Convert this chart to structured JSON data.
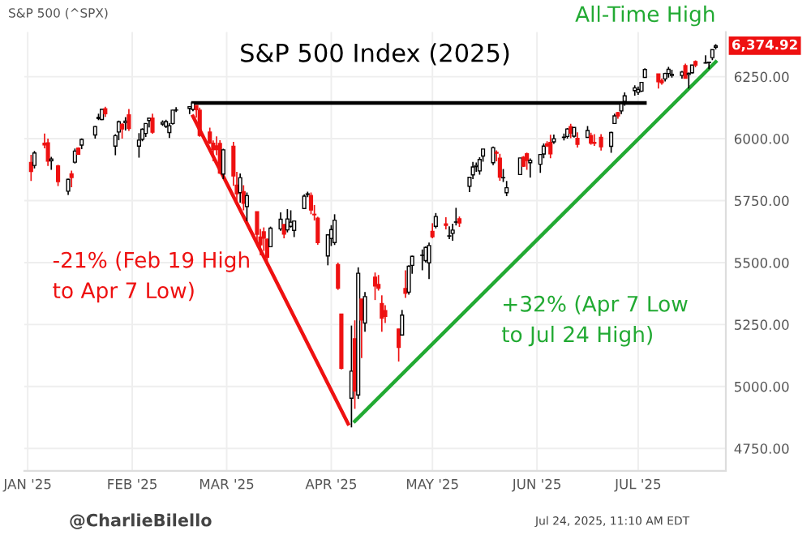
{
  "chart_data": {
    "type": "candlestick",
    "title": "S&P 500 Index (2025)",
    "subtitle": "S&P 500 (^SPX)",
    "x": [
      "2025-01-02",
      "2025-01-03",
      "2025-01-06",
      "2025-01-07",
      "2025-01-08",
      "2025-01-10",
      "2025-01-13",
      "2025-01-14",
      "2025-01-15",
      "2025-01-16",
      "2025-01-17",
      "2025-01-21",
      "2025-01-22",
      "2025-01-23",
      "2025-01-24",
      "2025-01-27",
      "2025-01-28",
      "2025-01-29",
      "2025-01-30",
      "2025-01-31",
      "2025-02-03",
      "2025-02-04",
      "2025-02-05",
      "2025-02-06",
      "2025-02-07",
      "2025-02-10",
      "2025-02-11",
      "2025-02-12",
      "2025-02-13",
      "2025-02-14",
      "2025-02-18",
      "2025-02-19",
      "2025-02-20",
      "2025-02-21",
      "2025-02-24",
      "2025-02-25",
      "2025-02-26",
      "2025-02-27",
      "2025-02-28",
      "2025-03-03",
      "2025-03-04",
      "2025-03-05",
      "2025-03-06",
      "2025-03-07",
      "2025-03-10",
      "2025-03-11",
      "2025-03-12",
      "2025-03-13",
      "2025-03-14",
      "2025-03-17",
      "2025-03-18",
      "2025-03-19",
      "2025-03-20",
      "2025-03-21",
      "2025-03-24",
      "2025-03-25",
      "2025-03-26",
      "2025-03-27",
      "2025-03-28",
      "2025-03-31",
      "2025-04-01",
      "2025-04-02",
      "2025-04-03",
      "2025-04-04",
      "2025-04-07",
      "2025-04-08",
      "2025-04-09",
      "2025-04-10",
      "2025-04-11",
      "2025-04-14",
      "2025-04-15",
      "2025-04-16",
      "2025-04-17",
      "2025-04-21",
      "2025-04-22",
      "2025-04-23",
      "2025-04-24",
      "2025-04-25",
      "2025-04-28",
      "2025-04-29",
      "2025-04-30",
      "2025-05-01",
      "2025-05-02",
      "2025-05-05",
      "2025-05-06",
      "2025-05-07",
      "2025-05-08",
      "2025-05-09",
      "2025-05-12",
      "2025-05-13",
      "2025-05-14",
      "2025-05-15",
      "2025-05-16",
      "2025-05-19",
      "2025-05-20",
      "2025-05-21",
      "2025-05-22",
      "2025-05-23",
      "2025-05-27",
      "2025-05-28",
      "2025-05-29",
      "2025-05-30",
      "2025-06-02",
      "2025-06-03",
      "2025-06-04",
      "2025-06-05",
      "2025-06-06",
      "2025-06-09",
      "2025-06-10",
      "2025-06-11",
      "2025-06-12",
      "2025-06-13",
      "2025-06-16",
      "2025-06-17",
      "2025-06-18",
      "2025-06-20",
      "2025-06-23",
      "2025-06-24",
      "2025-06-25",
      "2025-06-26",
      "2025-06-27",
      "2025-06-30",
      "2025-07-01",
      "2025-07-02",
      "2025-07-03",
      "2025-07-07",
      "2025-07-08",
      "2025-07-09",
      "2025-07-10",
      "2025-07-11",
      "2025-07-14",
      "2025-07-15",
      "2025-07-16",
      "2025-07-17",
      "2025-07-18",
      "2025-07-21",
      "2025-07-22",
      "2025-07-23",
      "2025-07-24"
    ],
    "ohlc": [
      [
        5904,
        5935,
        5829,
        5868
      ],
      [
        5892,
        5950,
        5880,
        5942
      ],
      [
        5982,
        6021,
        5961,
        5975
      ],
      [
        5983,
        6000,
        5890,
        5909
      ],
      [
        5911,
        5927,
        5874,
        5918
      ],
      [
        5890,
        5895,
        5809,
        5827
      ],
      [
        5788,
        5838,
        5773,
        5836
      ],
      [
        5858,
        5871,
        5804,
        5843
      ],
      [
        5905,
        5960,
        5900,
        5950
      ],
      [
        5962,
        5965,
        5935,
        5937
      ],
      [
        5974,
        6001,
        5958,
        5997
      ],
      [
        6015,
        6052,
        6000,
        6049
      ],
      [
        6081,
        6101,
        6075,
        6086
      ],
      [
        6077,
        6119,
        6075,
        6119
      ],
      [
        6121,
        6129,
        6088,
        6101
      ],
      [
        5970,
        6018,
        5933,
        6012
      ],
      [
        6027,
        6073,
        5994,
        6068
      ],
      [
        6058,
        6063,
        6000,
        6039
      ],
      [
        6065,
        6087,
        6033,
        6071
      ],
      [
        6096,
        6120,
        6031,
        6041
      ],
      [
        5970,
        6022,
        5923,
        5994
      ],
      [
        5998,
        6042,
        5990,
        6038
      ],
      [
        6021,
        6062,
        6007,
        6061
      ],
      [
        6073,
        6084,
        6045,
        6083
      ],
      [
        6083,
        6101,
        6020,
        6026
      ],
      [
        6059,
        6074,
        6052,
        6066
      ],
      [
        6050,
        6076,
        6043,
        6069
      ],
      [
        6025,
        6063,
        6003,
        6052
      ],
      [
        6061,
        6116,
        6057,
        6115
      ],
      [
        6115,
        6127,
        6107,
        6115
      ],
      [
        6122,
        6129,
        6099,
        6129
      ],
      [
        6118,
        6147,
        6111,
        6144
      ],
      [
        6134,
        6134,
        6085,
        6117
      ],
      [
        6115,
        6125,
        6008,
        6013
      ],
      [
        6027,
        6044,
        5978,
        5983
      ],
      [
        5982,
        5993,
        5909,
        5956
      ],
      [
        5971,
        6009,
        5933,
        5956
      ],
      [
        5981,
        5994,
        5858,
        5861
      ],
      [
        5857,
        5959,
        5837,
        5955
      ],
      [
        5969,
        5987,
        5810,
        5850
      ],
      [
        5812,
        5866,
        5733,
        5778
      ],
      [
        5782,
        5860,
        5742,
        5843
      ],
      [
        5786,
        5812,
        5711,
        5739
      ],
      [
        5726,
        5783,
        5667,
        5770
      ],
      [
        5705,
        5706,
        5565,
        5614
      ],
      [
        5603,
        5636,
        5529,
        5572
      ],
      [
        5624,
        5642,
        5547,
        5599
      ],
      [
        5594,
        5598,
        5505,
        5522
      ],
      [
        5564,
        5645,
        5563,
        5639
      ],
      [
        5636,
        5703,
        5628,
        5675
      ],
      [
        5654,
        5654,
        5598,
        5615
      ],
      [
        5632,
        5716,
        5622,
        5676
      ],
      [
        5646,
        5711,
        5641,
        5663
      ],
      [
        5630,
        5670,
        5603,
        5668
      ],
      [
        5718,
        5775,
        5718,
        5768
      ],
      [
        5775,
        5786,
        5764,
        5777
      ],
      [
        5771,
        5783,
        5695,
        5712
      ],
      [
        5695,
        5732,
        5670,
        5693
      ],
      [
        5679,
        5685,
        5572,
        5581
      ],
      [
        5527,
        5615,
        5489,
        5612
      ],
      [
        5597,
        5651,
        5567,
        5633
      ],
      [
        5581,
        5695,
        5571,
        5671
      ],
      [
        5492,
        5500,
        5390,
        5397
      ],
      [
        5292,
        5292,
        5069,
        5074
      ],
      [
        4953,
        5246,
        4835,
        5062
      ],
      [
        5193,
        5267,
        4910,
        4982
      ],
      [
        4966,
        5481,
        4950,
        5457
      ],
      [
        5353,
        5353,
        5115,
        5268
      ],
      [
        5256,
        5381,
        5221,
        5363
      ],
      [
        5441,
        5460,
        5349,
        5406
      ],
      [
        5412,
        5450,
        5387,
        5397
      ],
      [
        5335,
        5368,
        5221,
        5276
      ],
      [
        5306,
        5328,
        5256,
        5283
      ],
      [
        5232,
        5233,
        5101,
        5158
      ],
      [
        5208,
        5309,
        5208,
        5288
      ],
      [
        5395,
        5469,
        5358,
        5376
      ],
      [
        5381,
        5489,
        5371,
        5485
      ],
      [
        5489,
        5528,
        5455,
        5525
      ],
      [
        5529,
        5553,
        5469,
        5529
      ],
      [
        5508,
        5565,
        5501,
        5561
      ],
      [
        5499,
        5581,
        5434,
        5569
      ],
      [
        5626,
        5659,
        5598,
        5604
      ],
      [
        5646,
        5700,
        5638,
        5686
      ],
      [
        5656,
        5683,
        5634,
        5650
      ],
      [
        5607,
        5646,
        5595,
        5607
      ],
      [
        5618,
        5657,
        5588,
        5631
      ],
      [
        5663,
        5721,
        5650,
        5664
      ],
      [
        5677,
        5686,
        5644,
        5660
      ],
      [
        5808,
        5846,
        5784,
        5844
      ],
      [
        5854,
        5906,
        5837,
        5886
      ],
      [
        5887,
        5904,
        5866,
        5892
      ],
      [
        5870,
        5925,
        5855,
        5916
      ],
      [
        5930,
        5958,
        5907,
        5958
      ],
      [
        5903,
        5968,
        5893,
        5964
      ],
      [
        5945,
        5953,
        5909,
        5941
      ],
      [
        5921,
        5939,
        5830,
        5845
      ],
      [
        5842,
        5878,
        5825,
        5842
      ],
      [
        5782,
        5829,
        5768,
        5802
      ],
      [
        5855,
        5922,
        5854,
        5922
      ],
      [
        5925,
        5930,
        5886,
        5889
      ],
      [
        5939,
        5944,
        5874,
        5912
      ],
      [
        5903,
        5920,
        5843,
        5912
      ],
      [
        5897,
        5937,
        5862,
        5936
      ],
      [
        5938,
        5981,
        5921,
        5970
      ],
      [
        5979,
        5990,
        5966,
        5971
      ],
      [
        5985,
        6016,
        5921,
        5939
      ],
      [
        5987,
        6017,
        5979,
        6000
      ],
      [
        6005,
        6021,
        5993,
        6006
      ],
      [
        6009,
        6043,
        6000,
        6039
      ],
      [
        6049,
        6060,
        6002,
        6022
      ],
      [
        6010,
        6046,
        6004,
        6045
      ],
      [
        6001,
        6026,
        5964,
        5977
      ],
      [
        6005,
        6051,
        6004,
        6033
      ],
      [
        6013,
        6024,
        5976,
        5982
      ],
      [
        5985,
        6018,
        5971,
        5981
      ],
      [
        6005,
        6018,
        5952,
        5967
      ],
      [
        5969,
        6028,
        5943,
        6025
      ],
      [
        6061,
        6101,
        6059,
        6092
      ],
      [
        6105,
        6108,
        6080,
        6092
      ],
      [
        6112,
        6146,
        6099,
        6141
      ],
      [
        6151,
        6187,
        6133,
        6173
      ],
      [
        6194,
        6215,
        6174,
        6205
      ],
      [
        6187,
        6210,
        6177,
        6198
      ],
      [
        6192,
        6227,
        6188,
        6227
      ],
      [
        6247,
        6284,
        6246,
        6279
      ],
      [
        6261,
        6262,
        6202,
        6230
      ],
      [
        6234,
        6243,
        6218,
        6226
      ],
      [
        6241,
        6266,
        6231,
        6263
      ],
      [
        6263,
        6290,
        6246,
        6280
      ],
      [
        6255,
        6278,
        6246,
        6260
      ],
      [
        6255,
        6273,
        6242,
        6269
      ],
      [
        6295,
        6303,
        6243,
        6244
      ],
      [
        6259,
        6267,
        6202,
        6264
      ],
      [
        6266,
        6298,
        6263,
        6297
      ],
      [
        6311,
        6316,
        6288,
        6297
      ],
      [
        6305,
        6336,
        6304,
        6306
      ],
      [
        6307,
        6310,
        6281,
        6309
      ],
      [
        6327,
        6359,
        6317,
        6359
      ],
      [
        6369,
        6381,
        6360,
        6374.92
      ]
    ],
    "series": [
      {
        "type": "line",
        "color": "#000000",
        "x": [
          "2025-02-19",
          "2025-07-03"
        ],
        "values": [
          6144,
          6144
        ]
      },
      {
        "type": "line",
        "color": "#ee1111",
        "x": [
          "2025-02-19",
          "2025-04-06"
        ],
        "values": [
          6090,
          4850
        ]
      },
      {
        "type": "line",
        "color": "#22aa33",
        "x": [
          "2025-04-08",
          "2025-07-24"
        ],
        "values": [
          4860,
          6310
        ]
      }
    ],
    "xlim": [
      "2024-12-31",
      "2025-07-27"
    ],
    "xticks": [
      {
        "value": "2025-01-01",
        "label": "JAN '25"
      },
      {
        "value": "2025-02-01",
        "label": "FEB '25"
      },
      {
        "value": "2025-03-01",
        "label": "MAR '25"
      },
      {
        "value": "2025-04-01",
        "label": "APR '25"
      },
      {
        "value": "2025-05-01",
        "label": "MAY '25"
      },
      {
        "value": "2025-06-01",
        "label": "JUN '25"
      },
      {
        "value": "2025-07-01",
        "label": "JUL '25"
      }
    ],
    "ylim": [
      4660,
      6430
    ],
    "yticks": [
      {
        "value": 4750,
        "label": "4750.00"
      },
      {
        "value": 5000,
        "label": "5000.00"
      },
      {
        "value": 5250,
        "label": "5250.00"
      },
      {
        "value": 5500,
        "label": "5500.00"
      },
      {
        "value": 5750,
        "label": "5750.00"
      },
      {
        "value": 6000,
        "label": "6000.00"
      },
      {
        "value": 6250,
        "label": "6250.00"
      }
    ],
    "grid": true,
    "annotations": [
      "-21% (Feb 19 High\nto Apr 7 Low)",
      "+32% (Apr 7 Low\nto Jul 24 High)",
      {
        "text": "All-Time High",
        "x": "2025-07-24",
        "y": 6381
      },
      {
        "text": "6,374.92",
        "x": "2025-07-24",
        "y": 6374.92
      },
      "@CharlieBilello",
      "Jul 24, 2025, 11:10 AM EDT"
    ]
  }
}
